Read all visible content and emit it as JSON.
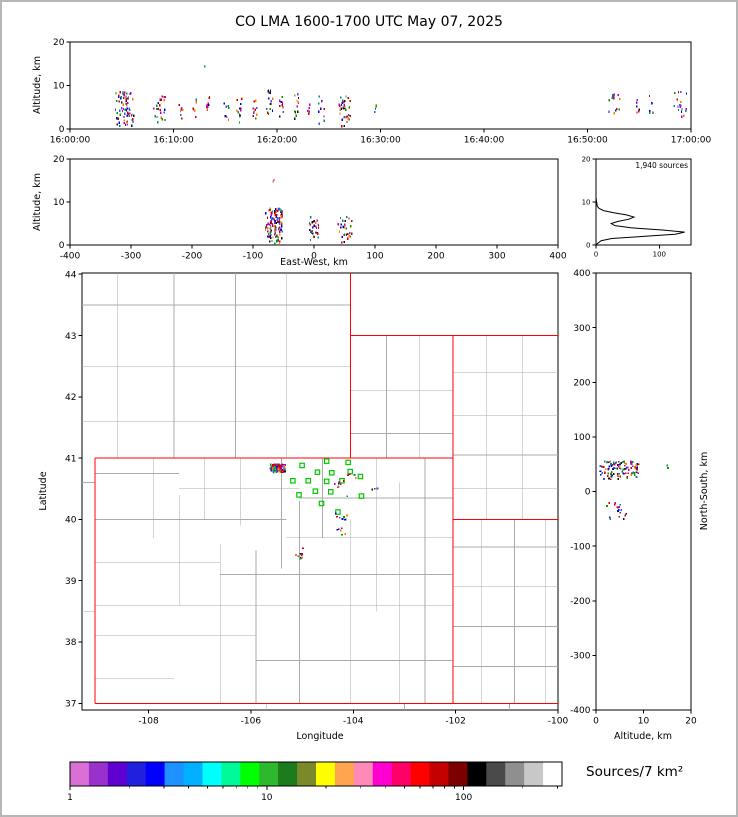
{
  "chart_data": {
    "type": "scatter",
    "title": "CO LMA 1600-1700 UTC May 07, 2025",
    "point_palette": [
      "#0000dd",
      "#0000dd",
      "#cc0000",
      "#cc0000",
      "#111111",
      "#009900",
      "#bb00bb",
      "#008888",
      "#3355ff",
      "#ff7700"
    ],
    "station_color": "#00c800",
    "panels": {
      "time_height": {
        "ylabel": "Altitude, km",
        "xlim": [
          0,
          60
        ],
        "ylim": [
          0,
          20
        ],
        "xticks": [
          {
            "v": 0,
            "label": "16:00:00"
          },
          {
            "v": 10,
            "label": "16:10:00"
          },
          {
            "v": 20,
            "label": "16:20:00"
          },
          {
            "v": 30,
            "label": "16:30:00"
          },
          {
            "v": 40,
            "label": "16:40:00"
          },
          {
            "v": 50,
            "label": "16:50:00"
          },
          {
            "v": 60,
            "label": "17:00:00"
          }
        ],
        "yticks": [
          {
            "v": 0,
            "label": "0"
          },
          {
            "v": 10,
            "label": "10"
          },
          {
            "v": 20,
            "label": "20"
          }
        ]
      },
      "ew_height": {
        "ylabel": "Altitude, km",
        "xlabel": "East-West, km",
        "xlim": [
          -400,
          400
        ],
        "ylim": [
          0,
          20
        ],
        "xticks": [
          {
            "v": -400,
            "label": "-400"
          },
          {
            "v": -300,
            "label": "-300"
          },
          {
            "v": -200,
            "label": "-200"
          },
          {
            "v": -100,
            "label": "-100"
          },
          {
            "v": 0,
            "label": "0"
          },
          {
            "v": 100,
            "label": "100"
          },
          {
            "v": 200,
            "label": "200"
          },
          {
            "v": 300,
            "label": "300"
          },
          {
            "v": 400,
            "label": "400"
          }
        ],
        "yticks": [
          {
            "v": 0,
            "label": "0"
          },
          {
            "v": 10,
            "label": "10"
          },
          {
            "v": 20,
            "label": "20"
          }
        ]
      },
      "histogram": {
        "note": "1,940 sources",
        "tick_font": 7,
        "xlim": [
          0,
          150
        ],
        "ylim": [
          0,
          20
        ],
        "xticks": [
          {
            "v": 0,
            "label": "0"
          },
          {
            "v": 100,
            "label": "100"
          }
        ],
        "yticks": [
          {
            "v": 0,
            "label": "0"
          },
          {
            "v": 10,
            "label": "10"
          },
          {
            "v": 20,
            "label": "20"
          }
        ]
      },
      "map": {
        "ylabel": "Latitude",
        "xlabel": "Longitude",
        "xlim": [
          -109.3,
          -100.0
        ],
        "ylim": [
          36.89,
          44.02
        ],
        "xticks": [
          {
            "v": -108,
            "label": "-108"
          },
          {
            "v": -106,
            "label": "-106"
          },
          {
            "v": -104,
            "label": "-104"
          },
          {
            "v": -102,
            "label": "-102"
          },
          {
            "v": -100,
            "label": "-100"
          }
        ],
        "yticks": [
          {
            "v": 37,
            "label": "37"
          },
          {
            "v": 38,
            "label": "38"
          },
          {
            "v": 39,
            "label": "39"
          },
          {
            "v": 40,
            "label": "40"
          },
          {
            "v": 41,
            "label": "41"
          },
          {
            "v": 42,
            "label": "42"
          },
          {
            "v": 43,
            "label": "43"
          },
          {
            "v": 44,
            "label": "44"
          }
        ]
      },
      "ns_height": {
        "xlabel": "Altitude, km",
        "ylabel_right": "North-South, km",
        "xlim": [
          0,
          20
        ],
        "ylim": [
          -400,
          400
        ],
        "xticks": [
          {
            "v": 0,
            "label": "0"
          },
          {
            "v": 10,
            "label": "10"
          },
          {
            "v": 20,
            "label": "20"
          }
        ],
        "yticks": [
          {
            "v": 400,
            "label": "400"
          },
          {
            "v": 300,
            "label": "300"
          },
          {
            "v": 200,
            "label": "200"
          },
          {
            "v": 100,
            "label": "100"
          },
          {
            "v": 0,
            "label": "0"
          },
          {
            "v": -100,
            "label": "-100"
          },
          {
            "v": -200,
            "label": "-200"
          },
          {
            "v": -300,
            "label": "-300"
          },
          {
            "v": -400,
            "label": "-400"
          }
        ]
      }
    },
    "sources": {
      "time_height": [
        {
          "x": [
            4.4,
            6.2
          ],
          "y": [
            0.3,
            8.5
          ],
          "n": 70
        },
        {
          "x": [
            8.0,
            9.2
          ],
          "y": [
            1,
            8
          ],
          "n": 22
        },
        {
          "x": [
            10.4,
            10.9
          ],
          "y": [
            2,
            6
          ],
          "n": 7
        },
        {
          "x": [
            11.9,
            12.2
          ],
          "y": [
            2.5,
            7
          ],
          "n": 6
        },
        {
          "x": [
            12.95,
            13.05
          ],
          "y": [
            14.3,
            14.9
          ],
          "n": 1
        },
        {
          "x": [
            13.1,
            13.6
          ],
          "y": [
            2,
            7.5
          ],
          "n": 10
        },
        {
          "x": [
            14.9,
            15.4
          ],
          "y": [
            2,
            6.5
          ],
          "n": 8
        },
        {
          "x": [
            16.1,
            16.6
          ],
          "y": [
            1.5,
            8.5
          ],
          "n": 14
        },
        {
          "x": [
            17.6,
            18.1
          ],
          "y": [
            2,
            7
          ],
          "n": 10
        },
        {
          "x": [
            19.0,
            19.6
          ],
          "y": [
            1,
            9
          ],
          "n": 16
        },
        {
          "x": [
            20.1,
            20.6
          ],
          "y": [
            2,
            7.5
          ],
          "n": 10
        },
        {
          "x": [
            21.6,
            22.1
          ],
          "y": [
            2,
            8
          ],
          "n": 12
        },
        {
          "x": [
            22.9,
            23.2
          ],
          "y": [
            3,
            6
          ],
          "n": 6
        },
        {
          "x": [
            24.0,
            24.6
          ],
          "y": [
            1,
            7.5
          ],
          "n": 10
        },
        {
          "x": [
            25.9,
            27.1
          ],
          "y": [
            0.5,
            7.5
          ],
          "n": 36
        },
        {
          "x": [
            29.4,
            29.7
          ],
          "y": [
            3,
            5.5
          ],
          "n": 4
        },
        {
          "x": [
            52.0,
            53.2
          ],
          "y": [
            2.5,
            8
          ],
          "n": 14
        },
        {
          "x": [
            54.4,
            55.0
          ],
          "y": [
            3,
            7.5
          ],
          "n": 8
        },
        {
          "x": [
            55.9,
            56.4
          ],
          "y": [
            3.5,
            8
          ],
          "n": 6
        },
        {
          "x": [
            58.4,
            59.9
          ],
          "y": [
            2,
            8.5
          ],
          "n": 18
        }
      ],
      "ew_height": [
        {
          "x": [
            -80,
            -52
          ],
          "y": [
            0.3,
            8.5
          ],
          "n": 110
        },
        {
          "x": [
            -8,
            8
          ],
          "y": [
            1,
            6.5
          ],
          "n": 28
        },
        {
          "x": [
            38,
            62
          ],
          "y": [
            0.5,
            6.5
          ],
          "n": 30
        },
        {
          "x": [
            -68,
            -62
          ],
          "y": [
            14,
            15.4
          ],
          "n": 2
        }
      ],
      "plan_view": [
        {
          "x": [
            -105.62,
            -105.33
          ],
          "y": [
            40.76,
            40.9
          ],
          "n": 85
        },
        {
          "x": [
            -104.45,
            -103.95
          ],
          "y": [
            40.35,
            40.75
          ],
          "n": 12
        },
        {
          "x": [
            -104.35,
            -104.12
          ],
          "y": [
            39.75,
            40.15
          ],
          "n": 14
        },
        {
          "x": [
            -105.12,
            -104.98
          ],
          "y": [
            39.3,
            39.6
          ],
          "n": 10
        },
        {
          "x": [
            -103.7,
            -103.5
          ],
          "y": [
            40.45,
            40.55
          ],
          "n": 3
        }
      ],
      "ns_height": [
        {
          "x": [
            0.5,
            9
          ],
          "y": [
            22,
            55
          ],
          "n": 110
        },
        {
          "x": [
            2,
            6.5
          ],
          "y": [
            -52,
            -18
          ],
          "n": 18
        },
        {
          "x": [
            15.0,
            15.6
          ],
          "y": [
            40,
            48
          ],
          "n": 2
        }
      ]
    },
    "altitude_histogram": {
      "counts_alt": [
        [
          0,
          0
        ],
        [
          2,
          0.3
        ],
        [
          8,
          1
        ],
        [
          25,
          1.5
        ],
        [
          75,
          2
        ],
        [
          125,
          2.5
        ],
        [
          140,
          3
        ],
        [
          105,
          3.5
        ],
        [
          55,
          4
        ],
        [
          30,
          4.5
        ],
        [
          24,
          5
        ],
        [
          35,
          5.5
        ],
        [
          52,
          6
        ],
        [
          60,
          6.5
        ],
        [
          48,
          7
        ],
        [
          28,
          7.5
        ],
        [
          12,
          8
        ],
        [
          5,
          8.5
        ],
        [
          2,
          9
        ],
        [
          1,
          10
        ],
        [
          0,
          11
        ]
      ]
    },
    "stations_lonlat": [
      [
        -105.0,
        40.88
      ],
      [
        -104.52,
        40.95
      ],
      [
        -104.1,
        40.93
      ],
      [
        -104.7,
        40.77
      ],
      [
        -104.42,
        40.76
      ],
      [
        -104.06,
        40.78
      ],
      [
        -105.18,
        40.63
      ],
      [
        -104.88,
        40.63
      ],
      [
        -104.52,
        40.62
      ],
      [
        -104.22,
        40.63
      ],
      [
        -103.86,
        40.7
      ],
      [
        -104.74,
        40.46
      ],
      [
        -104.44,
        40.45
      ],
      [
        -103.84,
        40.38
      ],
      [
        -105.06,
        40.4
      ],
      [
        -104.62,
        40.26
      ],
      [
        -104.3,
        40.12
      ]
    ],
    "state_borders_lonlat": [
      [
        -109.05,
        37,
        -109.05,
        41
      ],
      [
        -109.05,
        41,
        -102.05,
        41
      ],
      [
        -102.05,
        43,
        -102.05,
        37
      ],
      [
        -109.05,
        37,
        -100.0,
        37
      ],
      [
        -104.05,
        44.02,
        -104.05,
        41
      ],
      [
        -104.05,
        43,
        -100.0,
        43
      ],
      [
        -102.05,
        40,
        -100.0,
        40
      ]
    ],
    "county_borders_lonlat": [
      [
        -107.9,
        41,
        -107.9,
        39.7
      ],
      [
        -107.4,
        40.4,
        -107.4,
        38.6
      ],
      [
        -106.9,
        41,
        -106.9,
        40.0
      ],
      [
        -106.6,
        39.6,
        -106.6,
        37.0
      ],
      [
        -106.2,
        41,
        -106.2,
        39.9
      ],
      [
        -105.9,
        39.5,
        -105.9,
        37.0
      ],
      [
        -105.4,
        41,
        -105.4,
        39.2
      ],
      [
        -105.05,
        40.3,
        -105.05,
        37.0
      ],
      [
        -104.6,
        41,
        -104.6,
        39.7
      ],
      [
        -104.05,
        40.0,
        -104.05,
        37.0
      ],
      [
        -103.55,
        41,
        -103.55,
        38.5
      ],
      [
        -103.1,
        40.6,
        -103.1,
        37.0
      ],
      [
        -102.6,
        41,
        -102.6,
        37.0
      ],
      [
        -109.05,
        40.75,
        -107.4,
        40.75
      ],
      [
        -107.4,
        40.5,
        -105.05,
        40.5
      ],
      [
        -105.05,
        40.35,
        -102.05,
        40.35
      ],
      [
        -109.05,
        40.0,
        -105.3,
        40.0
      ],
      [
        -105.3,
        39.7,
        -102.05,
        39.7
      ],
      [
        -109.05,
        39.3,
        -106.6,
        39.3
      ],
      [
        -106.6,
        39.1,
        -102.05,
        39.1
      ],
      [
        -109.05,
        38.6,
        -102.05,
        38.6
      ],
      [
        -109.05,
        38.1,
        -105.9,
        38.1
      ],
      [
        -105.9,
        37.7,
        -102.05,
        37.7
      ],
      [
        -109.05,
        37.4,
        -107.5,
        37.4
      ],
      [
        -103.35,
        43,
        -103.35,
        41
      ],
      [
        -102.7,
        43,
        -102.7,
        41
      ],
      [
        -104.05,
        42.1,
        -102.05,
        42.1
      ],
      [
        -104.05,
        41.4,
        -102.05,
        41.4
      ],
      [
        -101.4,
        43,
        -101.4,
        40
      ],
      [
        -100.7,
        43,
        -100.7,
        40
      ],
      [
        -102.05,
        42.4,
        -100.0,
        42.4
      ],
      [
        -102.05,
        41.7,
        -100.0,
        41.7
      ],
      [
        -102.05,
        41.05,
        -100.0,
        41.05
      ],
      [
        -102.05,
        40.5,
        -100.0,
        40.5
      ],
      [
        -101.5,
        40,
        -101.5,
        37
      ],
      [
        -100.85,
        40,
        -100.85,
        37
      ],
      [
        -100.25,
        40,
        -100.25,
        37
      ],
      [
        -102.05,
        39.55,
        -100.0,
        39.55
      ],
      [
        -102.05,
        38.9,
        -100.0,
        38.9
      ],
      [
        -102.05,
        38.25,
        -100.0,
        38.25
      ],
      [
        -102.05,
        37.6,
        -100.0,
        37.6
      ],
      [
        -105.3,
        44.02,
        -105.3,
        41
      ],
      [
        -106.3,
        44.02,
        -106.3,
        41
      ],
      [
        -107.5,
        44.02,
        -107.5,
        41
      ],
      [
        -108.6,
        44.02,
        -108.6,
        41
      ],
      [
        -109.3,
        41.6,
        -104.05,
        41.6
      ],
      [
        -109.3,
        42.5,
        -104.05,
        42.5
      ],
      [
        -109.3,
        43.5,
        -104.05,
        43.5
      ],
      [
        -109.3,
        40.6,
        -109.05,
        40.6
      ],
      [
        -109.3,
        38.5,
        -109.05,
        38.5
      ],
      [
        -105.7,
        37,
        -105.7,
        36.89
      ],
      [
        -103.0,
        37,
        -103.0,
        36.89
      ],
      [
        -100.95,
        37,
        -100.95,
        36.89
      ]
    ],
    "colorbar": {
      "label": "Sources/7 km²",
      "ticks": [
        {
          "pos": 0,
          "label": "1"
        },
        {
          "pos": 0.4,
          "label": "10"
        },
        {
          "pos": 0.8,
          "label": "100"
        }
      ],
      "colors": [
        "#da70d6",
        "#9932cc",
        "#5f00d0",
        "#2020dd",
        "#0000ff",
        "#1e90ff",
        "#00b0ff",
        "#00ffff",
        "#00fa9a",
        "#00ff00",
        "#2db82d",
        "#1d7a1d",
        "#7a8a2a",
        "#ffff00",
        "#ffa54f",
        "#ff8ab8",
        "#ff00d0",
        "#ff0066",
        "#ff0000",
        "#c40000",
        "#7d0000",
        "#000000",
        "#4a4a4a",
        "#8f8f8f",
        "#c8c8c8",
        "#ffffff"
      ]
    }
  }
}
